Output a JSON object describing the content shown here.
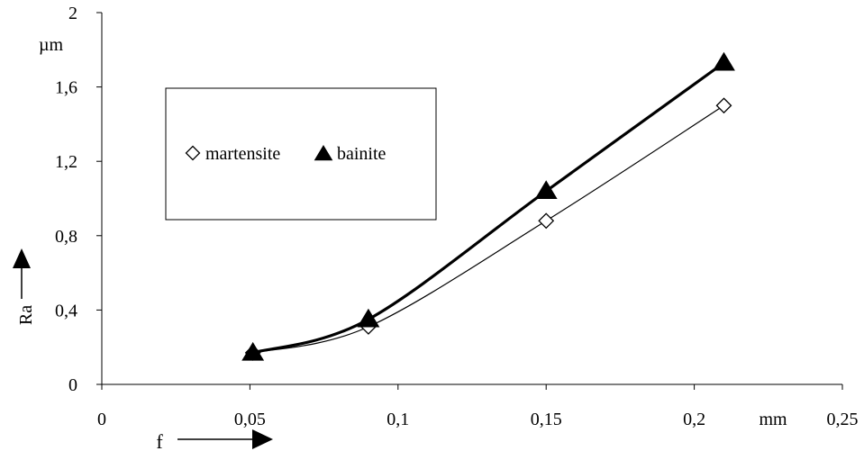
{
  "chart_data": {
    "type": "line",
    "x_ticks": [
      "0",
      "0,05",
      "0,1",
      "0,15",
      "0,2",
      "0,25"
    ],
    "x_tick_values": [
      0,
      0.05,
      0.1,
      0.15,
      0.2,
      0.25
    ],
    "y_ticks": [
      "0",
      "0,4",
      "0,8",
      "1,2",
      "1,6",
      "2"
    ],
    "y_tick_values": [
      0,
      0.4,
      0.8,
      1.2,
      1.6,
      2.0
    ],
    "xlim": [
      0,
      0.25
    ],
    "ylim": [
      0,
      2
    ],
    "xlabel": "f",
    "ylabel": "Ra",
    "x_unit": "mm",
    "y_unit": "µm",
    "grid": false,
    "legend_position": "upper-left",
    "series": [
      {
        "name": "martensite",
        "marker": "open-diamond",
        "color": "#000000",
        "x": [
          0.051,
          0.09,
          0.15,
          0.21
        ],
        "y": [
          0.17,
          0.31,
          0.88,
          1.5
        ]
      },
      {
        "name": "bainite",
        "marker": "filled-triangle",
        "color": "#000000",
        "x": [
          0.051,
          0.09,
          0.15,
          0.21
        ],
        "y": [
          0.17,
          0.35,
          1.04,
          1.73
        ]
      }
    ]
  }
}
